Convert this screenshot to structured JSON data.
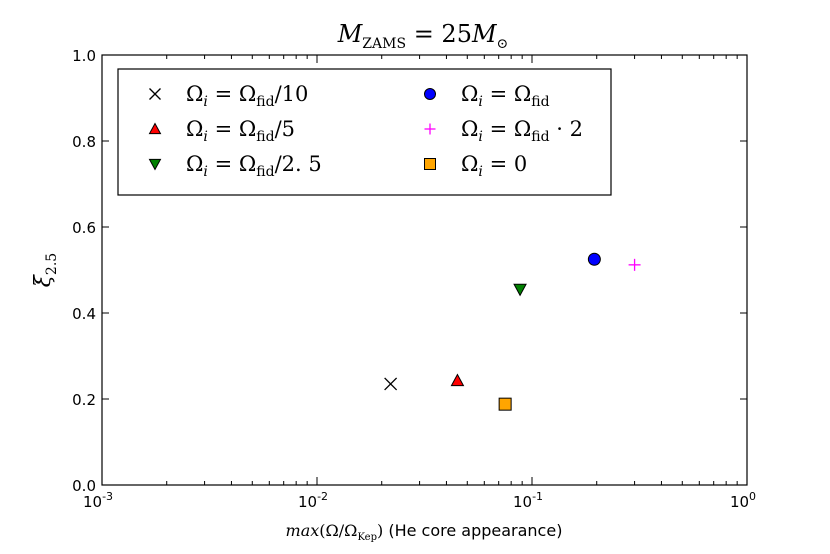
{
  "chart_data": {
    "type": "scatter",
    "title": "M_ZAMS = 25 M_⊙",
    "title_parts": {
      "lhs": "M",
      "lhs_sub": "ZAMS",
      "rhs_coef": " = 25",
      "rhs_M": "M",
      "rhs_sub": "⊙"
    },
    "xlabel": "max(Ω/Ω_Kep) (He core appearance)",
    "xlabel_parts": {
      "func": "max",
      "open": "(Ω/Ω",
      "sub": "Kep",
      "close": ")",
      "tail": " (He core appearance)"
    },
    "ylabel": "ξ_2.5",
    "ylabel_parts": {
      "symbol": "ξ",
      "sub": "2.5"
    },
    "xscale": "log",
    "xlim": [
      0.001,
      1
    ],
    "ylim": [
      0.0,
      1.0
    ],
    "x_ticks": [
      {
        "base": "10",
        "exp": "-3"
      },
      {
        "base": "10",
        "exp": "-2"
      },
      {
        "base": "10",
        "exp": "-1"
      },
      {
        "base": "10",
        "exp": "0"
      }
    ],
    "y_ticks": [
      "0.0",
      "0.2",
      "0.4",
      "0.6",
      "0.8",
      "1.0"
    ],
    "legend_position": "top-left",
    "series": [
      {
        "name": "Ω_i = Ω_fid/10",
        "label_lhs": "Ω",
        "label_sub": "i",
        "label_mid": " = Ω",
        "label_sub2": "fid",
        "label_tail": "/10",
        "marker": "x",
        "color": "#000000",
        "x": 0.022,
        "y": 0.235
      },
      {
        "name": "Ω_i = Ω_fid/5",
        "label_lhs": "Ω",
        "label_sub": "i",
        "label_mid": " = Ω",
        "label_sub2": "fid",
        "label_tail": "/5",
        "marker": "triangle-up",
        "color": "#ff0000",
        "x": 0.045,
        "y": 0.243
      },
      {
        "name": "Ω_i = Ω_fid/2.5",
        "label_lhs": "Ω",
        "label_sub": "i",
        "label_mid": " = Ω",
        "label_sub2": "fid",
        "label_tail": "/2. 5",
        "marker": "triangle-down",
        "color": "#008000",
        "x": 0.088,
        "y": 0.455
      },
      {
        "name": "Ω_i = Ω_fid",
        "label_lhs": "Ω",
        "label_sub": "i",
        "label_mid": " = Ω",
        "label_sub2": "fid",
        "label_tail": "",
        "marker": "circle",
        "color": "#0000ff",
        "x": 0.195,
        "y": 0.525
      },
      {
        "name": "Ω_i = Ω_fid · 2",
        "label_lhs": "Ω",
        "label_sub": "i",
        "label_mid": " = Ω",
        "label_sub2": "fid",
        "label_tail": " · 2",
        "marker": "plus",
        "color": "#ff00ff",
        "x": 0.3,
        "y": 0.512
      },
      {
        "name": "Ω_i = 0",
        "label_lhs": "Ω",
        "label_sub": "i",
        "label_mid": " = 0",
        "label_sub2": "",
        "label_tail": "",
        "marker": "square",
        "color": "#ffa500",
        "x": 0.075,
        "y": 0.188
      }
    ]
  }
}
